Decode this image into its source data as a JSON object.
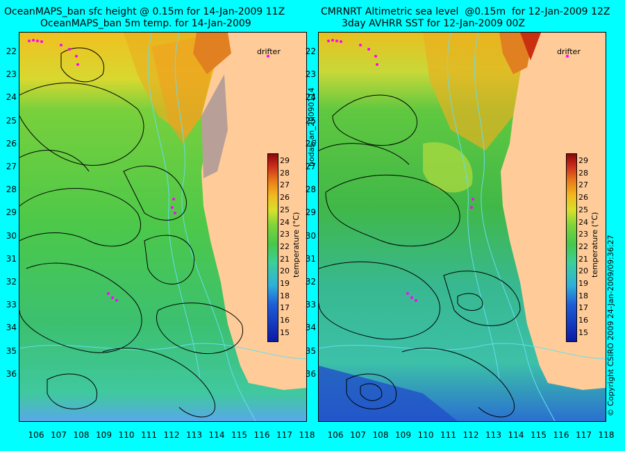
{
  "left_panel": {
    "title_line1": "OceanMAPS_ban sfc height @ 0.15m for 14-Jan-2009 11Z",
    "title_line2": "OceanMAPS_ban 5m temp. for 14-Jan-2009"
  },
  "right_panel": {
    "title_line1": "CMRNRT Altimetric sea level  @0.15m  for 12-Jan-2009 12Z",
    "title_line2": "3day AVHRR SST for 12-Jan-2009 00Z"
  },
  "drifter_label": "drifter",
  "latitude_ticks": [
    "22",
    "23",
    "24",
    "25",
    "26",
    "27",
    "28",
    "29",
    "30",
    "31",
    "32",
    "33",
    "34",
    "35",
    "36"
  ],
  "longitude_ticks": [
    "106",
    "107",
    "108",
    "109",
    "110",
    "111",
    "112",
    "113",
    "114",
    "115",
    "116",
    "117",
    "118"
  ],
  "colorbar": {
    "title": "temperature (°C)",
    "ticks": [
      "29",
      "28",
      "27",
      "26",
      "25",
      "24",
      "23",
      "22",
      "21",
      "20",
      "19",
      "18",
      "17",
      "16",
      "15"
    ]
  },
  "side_labels": {
    "center": "bodas_an_20090114",
    "right": "© Copyright CSIRO 2009   24-Jan-2009/09:36:27"
  },
  "colors": {
    "background": "#00ffff",
    "land": "#ffcc99",
    "contour": "#000000",
    "shelf_lines": "#66ddee",
    "drifter": "#ff00ff"
  }
}
